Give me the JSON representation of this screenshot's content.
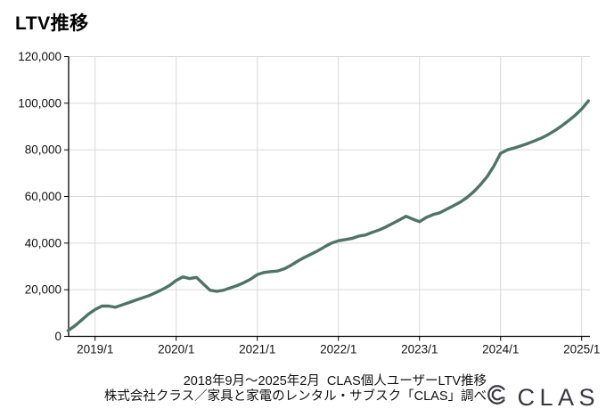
{
  "page": {
    "title": "LTV推移"
  },
  "caption": {
    "line1": "2018年9月〜2025年2月  CLAS個人ユーザーLTV推移",
    "line2": "株式会社クラス／家具と家電のレンタル・サブスク「CLAS」調べ"
  },
  "logo": {
    "text": "CLAS",
    "icon": "clas-mark",
    "color": "#3a3740"
  },
  "chart_data": {
    "type": "line",
    "title": "LTV推移",
    "xlabel": "",
    "ylabel": "",
    "ylim": [
      0,
      120000
    ],
    "grid": true,
    "legend": "none",
    "line_color": "#4e7468",
    "grid_color": "#d9d9d9",
    "axis_color": "#000000",
    "y_ticks": [
      0,
      20000,
      40000,
      60000,
      80000,
      100000,
      120000
    ],
    "y_tick_labels": [
      "0",
      "20,000",
      "40,000",
      "60,000",
      "80,000",
      "100,000",
      "120,000"
    ],
    "x_tick_indices": [
      4,
      16,
      28,
      40,
      52,
      64,
      76
    ],
    "x_tick_labels": [
      "2019/1",
      "2020/1",
      "2021/1",
      "2022/1",
      "2023/1",
      "2024/1",
      "2025/1"
    ],
    "months": [
      "2018/9",
      "2018/10",
      "2018/11",
      "2018/12",
      "2019/1",
      "2019/2",
      "2019/3",
      "2019/4",
      "2019/5",
      "2019/6",
      "2019/7",
      "2019/8",
      "2019/9",
      "2019/10",
      "2019/11",
      "2019/12",
      "2020/1",
      "2020/2",
      "2020/3",
      "2020/4",
      "2020/5",
      "2020/6",
      "2020/7",
      "2020/8",
      "2020/9",
      "2020/10",
      "2020/11",
      "2020/12",
      "2021/1",
      "2021/2",
      "2021/3",
      "2021/4",
      "2021/5",
      "2021/6",
      "2021/7",
      "2021/8",
      "2021/9",
      "2021/10",
      "2021/11",
      "2021/12",
      "2022/1",
      "2022/2",
      "2022/3",
      "2022/4",
      "2022/5",
      "2022/6",
      "2022/7",
      "2022/8",
      "2022/9",
      "2022/10",
      "2022/11",
      "2022/12",
      "2023/1",
      "2023/2",
      "2023/3",
      "2023/4",
      "2023/5",
      "2023/6",
      "2023/7",
      "2023/8",
      "2023/9",
      "2023/10",
      "2023/11",
      "2023/12",
      "2024/1",
      "2024/2",
      "2024/3",
      "2024/4",
      "2024/5",
      "2024/6",
      "2024/7",
      "2024/8",
      "2024/9",
      "2024/10",
      "2024/11",
      "2024/12",
      "2025/1",
      "2025/2"
    ],
    "values": [
      2500,
      4500,
      7000,
      9500,
      11500,
      13000,
      13000,
      12500,
      13500,
      14500,
      15500,
      16500,
      17500,
      18800,
      20200,
      21800,
      24000,
      25500,
      24800,
      25300,
      22500,
      19800,
      19300,
      19800,
      20800,
      21800,
      23000,
      24500,
      26500,
      27400,
      27800,
      28000,
      29000,
      30500,
      32300,
      33900,
      35300,
      36800,
      38500,
      40000,
      41000,
      41500,
      42000,
      43000,
      43500,
      44600,
      45600,
      46900,
      48400,
      49900,
      51500,
      50300,
      49200,
      51000,
      52200,
      53000,
      54500,
      56000,
      57500,
      59500,
      62000,
      65000,
      68500,
      73000,
      78500,
      80000,
      80800,
      81700,
      82700,
      83800,
      85000,
      86500,
      88200,
      90200,
      92400,
      94700,
      97500,
      101000
    ]
  }
}
